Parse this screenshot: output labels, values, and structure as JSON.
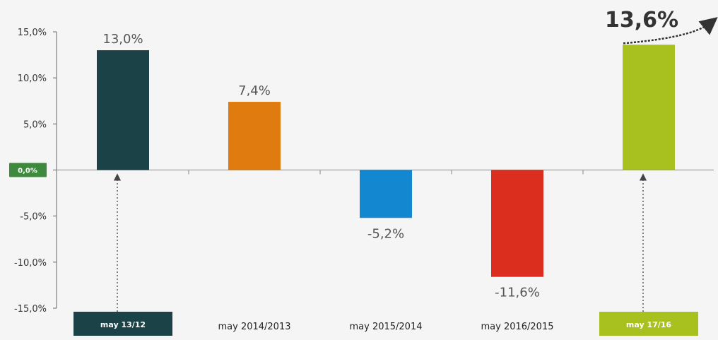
{
  "chart_data": {
    "type": "bar",
    "categories": [
      "may 13/12",
      "may 2014/2013",
      "may 2015/2014",
      "may 2016/2015",
      "may 17/16"
    ],
    "values": [
      13.0,
      7.4,
      -5.2,
      -11.6,
      13.6
    ],
    "data_labels": [
      "13,0%",
      "7,4%",
      "-5,2%",
      "-11,6%",
      "13,6%"
    ],
    "ylim": [
      -15,
      15
    ],
    "yticks": [
      15,
      10,
      5,
      0,
      -5,
      -10,
      -15
    ],
    "ytick_labels": [
      "15,0%",
      "10,0%",
      "5,0%",
      "0,0%",
      "-5,0%",
      "-10,0%",
      "-15,0%"
    ],
    "grid": false,
    "colors": [
      "#1b4347",
      "#e07b0f",
      "#1387cf",
      "#db2e1f",
      "#a9c11f"
    ],
    "highlighted_categories": [
      0,
      4
    ],
    "highlight_colors": [
      "#1b4347",
      "#a9c11f"
    ],
    "zero_label_color": "#3d8a3d",
    "emphasized_label": "13,6%"
  }
}
